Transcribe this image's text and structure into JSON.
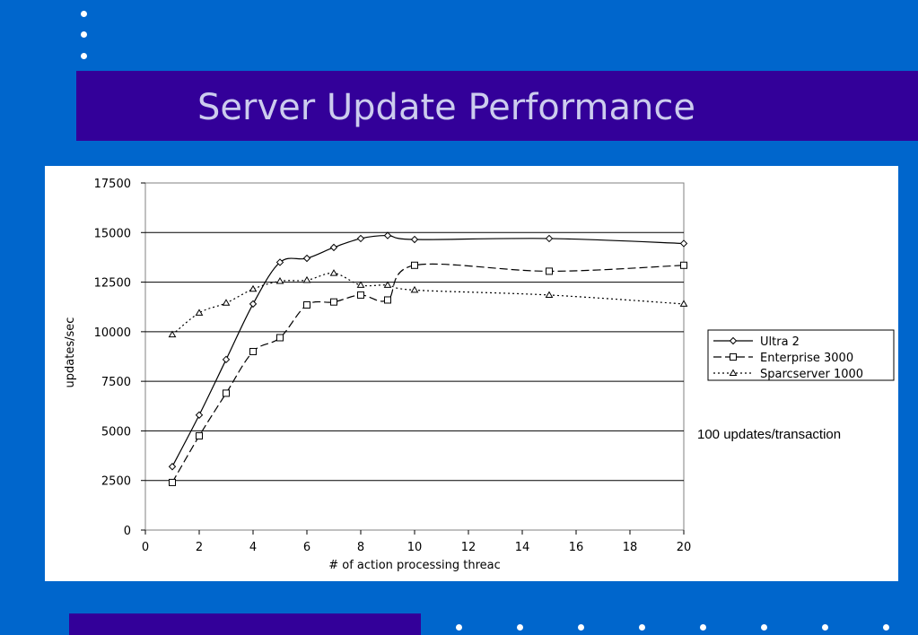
{
  "slide": {
    "title": "Server Update Performance",
    "note": "100 updates/transaction"
  },
  "colors": {
    "background": "#0066cc",
    "title_bar": "#330099",
    "title_text": "#ccccee",
    "chart_bg": "#ffffff"
  },
  "chart_data": {
    "type": "line",
    "title": "",
    "xlabel": "# of action processing threac",
    "ylabel": "updates/sec",
    "xlim": [
      0,
      20
    ],
    "ylim": [
      0,
      17500
    ],
    "xticks": [
      0,
      2,
      4,
      6,
      8,
      10,
      12,
      14,
      16,
      18,
      20
    ],
    "yticks": [
      0,
      2500,
      5000,
      7500,
      10000,
      12500,
      15000,
      17500
    ],
    "grid": "horizontal",
    "legend_position": "right",
    "series": [
      {
        "name": "Ultra 2",
        "marker": "diamond",
        "dash": "solid",
        "x": [
          1,
          2,
          3,
          4,
          5,
          6,
          7,
          8,
          9,
          10,
          15,
          20
        ],
        "y": [
          3200,
          5800,
          8600,
          11400,
          13500,
          13700,
          14250,
          14700,
          14850,
          14650,
          14700,
          14450
        ]
      },
      {
        "name": "Enterprise 3000",
        "marker": "square",
        "dash": "dashed",
        "x": [
          1,
          2,
          3,
          4,
          5,
          6,
          7,
          8,
          9,
          10,
          15,
          20
        ],
        "y": [
          2400,
          4750,
          6900,
          9000,
          9700,
          11350,
          11500,
          11850,
          11600,
          13350,
          13050,
          13350
        ]
      },
      {
        "name": "Sparcserver 1000",
        "marker": "triangle",
        "dash": "dotted",
        "x": [
          1,
          2,
          3,
          4,
          5,
          6,
          7,
          8,
          9,
          10,
          15,
          20
        ],
        "y": [
          9850,
          10950,
          11450,
          12150,
          12550,
          12600,
          12950,
          12350,
          12350,
          12100,
          11850,
          11400
        ]
      }
    ]
  }
}
